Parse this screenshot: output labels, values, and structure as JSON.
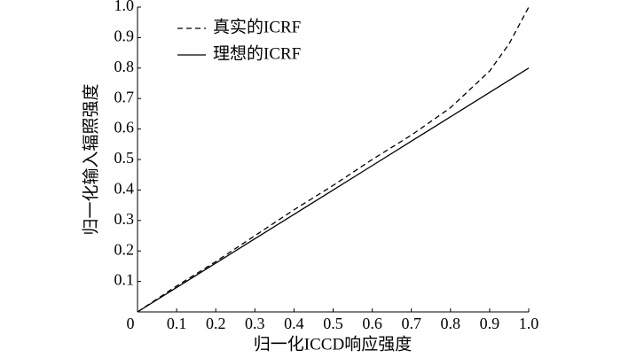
{
  "chart_data": {
    "type": "line",
    "x_label": "归一化ICCD响应强度",
    "y_label": "归一化输入辐照强度",
    "x": [
      0,
      0.1,
      0.2,
      0.3,
      0.4,
      0.5,
      0.6,
      0.7,
      0.8,
      0.9,
      0.95,
      1
    ],
    "series": [
      {
        "name": "真实的ICRF",
        "color": "#000000",
        "dash": "6,4",
        "values": [
          0,
          0.085,
          0.165,
          0.25,
          0.335,
          0.415,
          0.5,
          0.58,
          0.67,
          0.79,
          0.88,
          1
        ]
      },
      {
        "name": "理想的ICRF",
        "color": "#000000",
        "values": [
          0,
          0.08,
          0.16,
          0.24,
          0.32,
          0.4,
          0.48,
          0.56,
          0.64,
          0.72,
          0.76,
          0.8
        ]
      }
    ],
    "xlim": [
      0,
      1
    ],
    "ylim": [
      0,
      1
    ],
    "xticks": [
      0,
      0.1,
      0.2,
      0.3,
      0.4,
      0.5,
      0.6,
      0.7,
      0.8,
      0.9,
      {
        "value": 1,
        "label": "1.0"
      }
    ],
    "yticks": [
      0.1,
      0.2,
      0.3,
      0.4,
      0.5,
      0.6,
      0.7,
      0.8,
      0.9,
      {
        "value": 1,
        "label": "1.0"
      }
    ],
    "legend": "upper left"
  }
}
